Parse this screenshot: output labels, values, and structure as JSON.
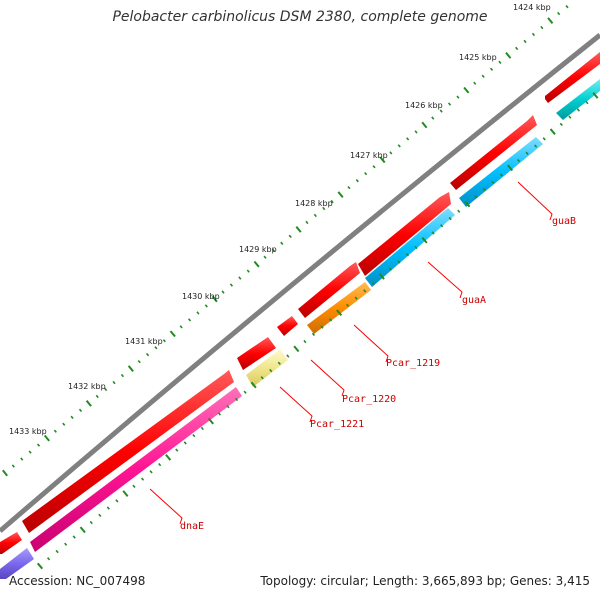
{
  "title": "Pelobacter carbinolicus DSM 2380, complete genome",
  "footer": {
    "accession": "Accession: NC_007498",
    "summary": "Topology: circular; Length: 3,665,893 bp; Genes: 3,415"
  },
  "ruler": {
    "labels": [
      "1424 kbp",
      "1425 kbp",
      "1426 kbp",
      "1427 kbp",
      "1428 kbp",
      "1429 kbp",
      "1430 kbp",
      "1431 kbp",
      "1432 kbp",
      "1433 kbp"
    ]
  },
  "genes": [
    {
      "name": "guaB",
      "color": "#ff0000"
    },
    {
      "name": "guaA",
      "color": "#00bfff"
    },
    {
      "name": "Pcar_1219",
      "color": "#ff8c00"
    },
    {
      "name": "Pcar_1220",
      "color": "#ff0000"
    },
    {
      "name": "Pcar_1221",
      "color": "#f0e68c"
    },
    {
      "name": "dnaE",
      "color": "#ff1493"
    }
  ],
  "colors": {
    "backbone": "#808080",
    "cds": "#ff0000",
    "tick": "#228b22",
    "label": "#cc0000",
    "leader": "#ff0000",
    "teal": "#00ced1",
    "purple": "#7b68ee"
  }
}
